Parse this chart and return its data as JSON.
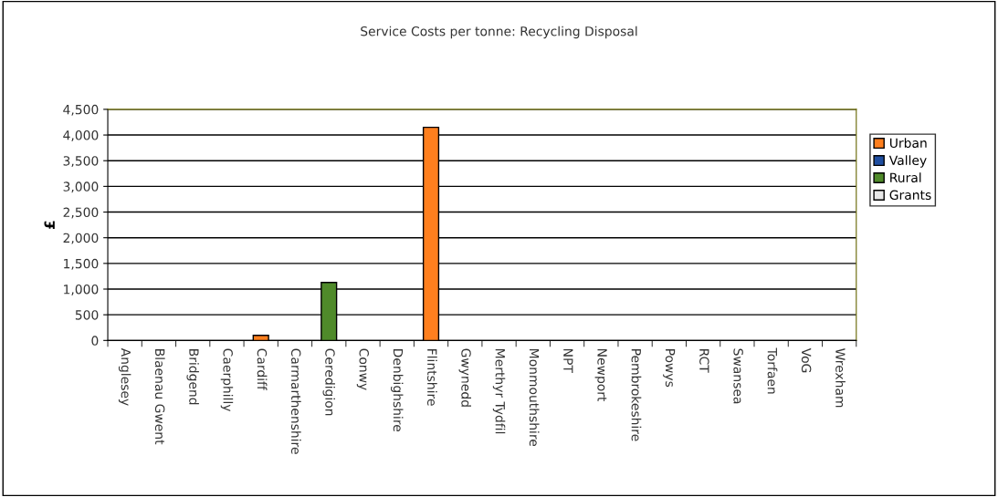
{
  "chart_data": {
    "type": "bar",
    "title": "Service Costs per tonne: Recycling Disposal",
    "ylabel": "£",
    "categories": [
      "Anglesey",
      "Blaenau Gwent",
      "Bridgend",
      "Caerphilly",
      "Cardiff",
      "Carmarthenshire",
      "Ceredigion",
      "Conwy",
      "Denbighshire",
      "Flintshire",
      "Gwynedd",
      "Merthyr Tydfil",
      "Monmouthshire",
      "NPT",
      "Newport",
      "Pembrokeshire",
      "Powys",
      "RCT",
      "Swansea",
      "Torfaen",
      "VoG",
      "Wrexham"
    ],
    "series": [
      {
        "name": "Urban",
        "color": "#ff7f1e",
        "values": [
          null,
          null,
          null,
          null,
          100,
          null,
          null,
          null,
          null,
          4150,
          null,
          null,
          null,
          null,
          null,
          null,
          null,
          null,
          null,
          null,
          null,
          null
        ]
      },
      {
        "name": "Valley",
        "color": "#1f4ea0",
        "values": [
          null,
          null,
          null,
          null,
          null,
          null,
          null,
          null,
          null,
          null,
          null,
          null,
          null,
          null,
          null,
          null,
          null,
          null,
          null,
          null,
          null,
          null
        ]
      },
      {
        "name": "Rural",
        "color": "#4f8a2a",
        "values": [
          null,
          null,
          null,
          null,
          null,
          null,
          1130,
          null,
          null,
          null,
          null,
          null,
          null,
          null,
          null,
          null,
          null,
          null,
          null,
          null,
          null,
          null
        ]
      },
      {
        "name": "Grants",
        "color": "#e8e8e8",
        "values": [
          null,
          null,
          null,
          null,
          null,
          null,
          null,
          null,
          null,
          null,
          null,
          null,
          null,
          null,
          null,
          null,
          null,
          null,
          null,
          null,
          null,
          null
        ]
      }
    ],
    "ylim": [
      0,
      4500
    ],
    "yticks": [
      {
        "value": 0,
        "label": "0"
      },
      {
        "value": 500,
        "label": "500"
      },
      {
        "value": 1000,
        "label": "1,000"
      },
      {
        "value": 1500,
        "label": "1,500"
      },
      {
        "value": 2000,
        "label": "2,000"
      },
      {
        "value": 2500,
        "label": "2,500"
      },
      {
        "value": 3000,
        "label": "3,000"
      },
      {
        "value": 3500,
        "label": "3,500"
      },
      {
        "value": 4000,
        "label": "4,000"
      },
      {
        "value": 4500,
        "label": "4,500"
      }
    ],
    "grid": "y",
    "legend": "right"
  }
}
